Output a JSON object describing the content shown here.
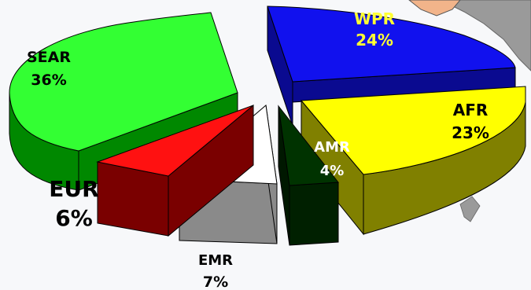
{
  "chart_data": {
    "type": "pie",
    "title": "",
    "slices": [
      {
        "key": "wpr",
        "label": "WPR",
        "value": 24,
        "percent_label": "24%",
        "color": "#1111ee",
        "side_color": "#0a0a90"
      },
      {
        "key": "afr",
        "label": "AFR",
        "value": 23,
        "percent_label": "23%",
        "color": "#ffff00",
        "side_color": "#808000"
      },
      {
        "key": "amr",
        "label": "AMR",
        "value": 4,
        "percent_label": "4%",
        "color": "#003300",
        "side_color": "#002000"
      },
      {
        "key": "emr",
        "label": "EMR",
        "value": 7,
        "percent_label": "7%",
        "color": "#ffffff",
        "side_color": "#8a8a8a"
      },
      {
        "key": "eur",
        "label": "EUR",
        "value": 6,
        "percent_label": "6%",
        "color": "#ff1111",
        "side_color": "#7a0000"
      },
      {
        "key": "sear",
        "label": "SEAR",
        "value": 36,
        "percent_label": "36%",
        "color": "#33ff33",
        "side_color": "#008800"
      }
    ],
    "exploded": true,
    "three_d": true,
    "legend": "none"
  }
}
